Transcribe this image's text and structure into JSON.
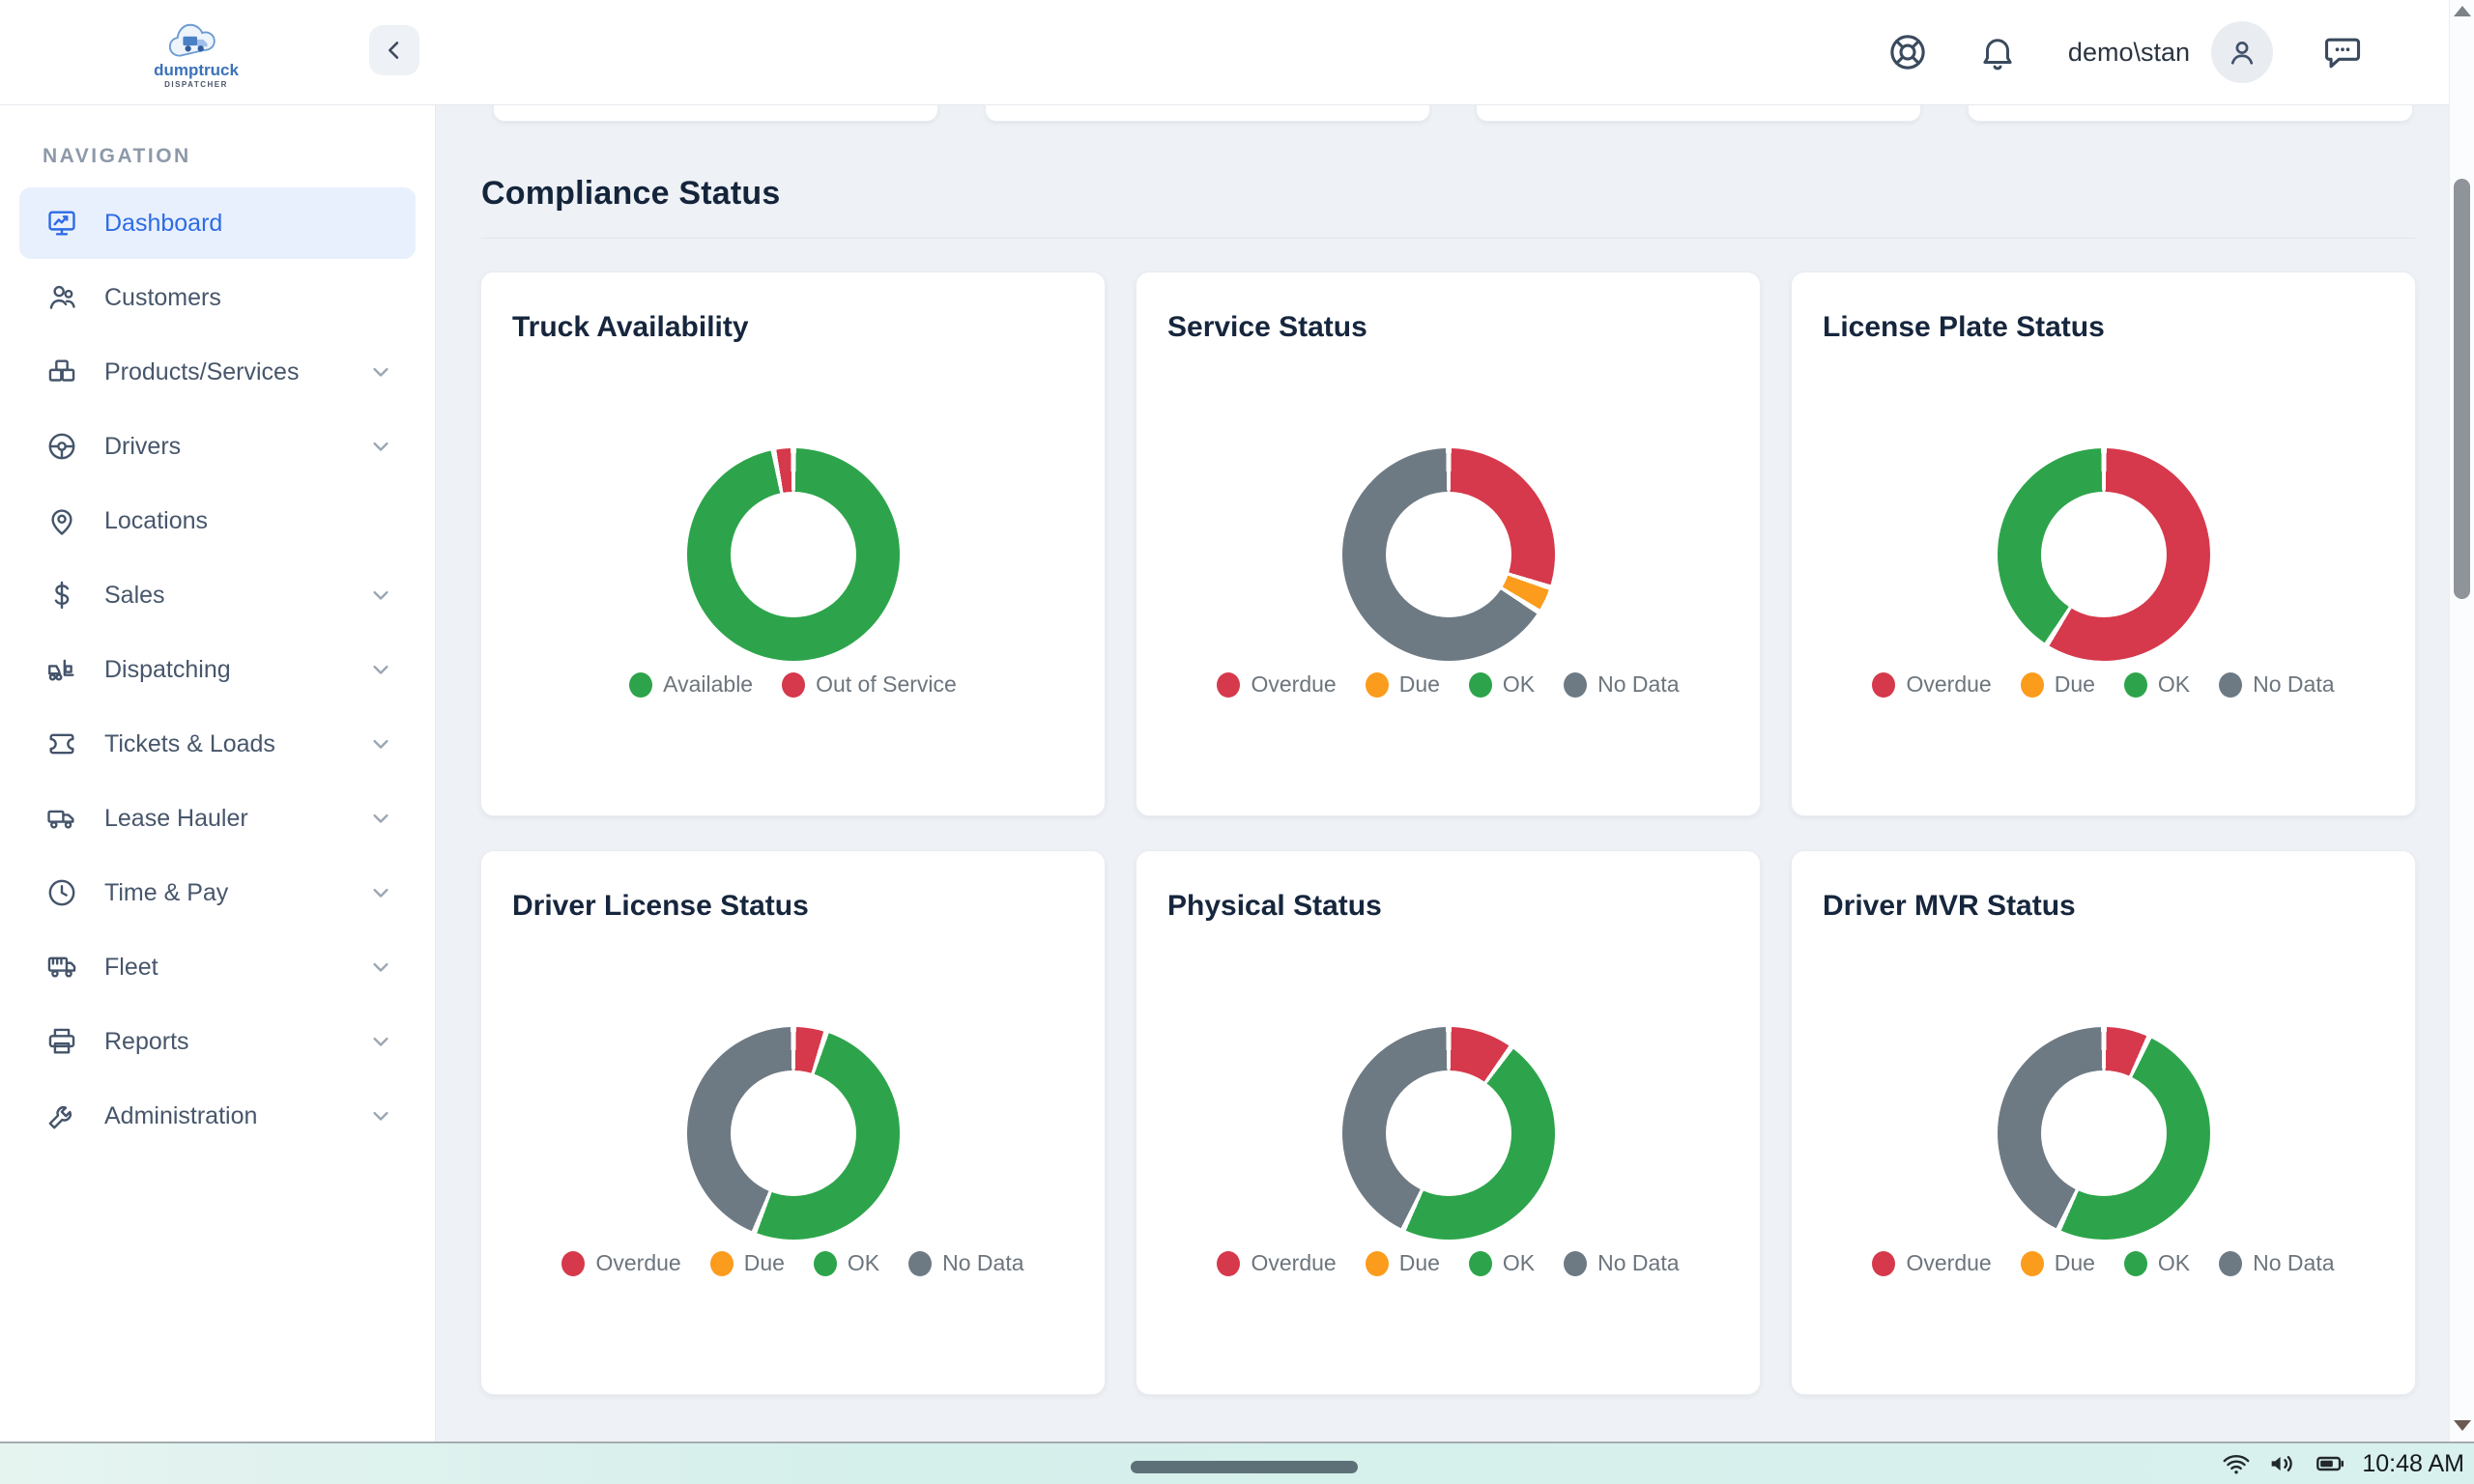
{
  "logo": {
    "name": "dumptruck",
    "tagline": "dispatcher"
  },
  "header": {
    "user": "demo\\stan",
    "icons": [
      "help",
      "notifications",
      "user-avatar",
      "chat"
    ]
  },
  "sidebar": {
    "heading": "NAVIGATION",
    "items": [
      {
        "id": "dashboard",
        "label": "Dashboard",
        "icon": "dashboard",
        "active": true,
        "expandable": false
      },
      {
        "id": "customers",
        "label": "Customers",
        "icon": "customers",
        "active": false,
        "expandable": false
      },
      {
        "id": "products-services",
        "label": "Products/Services",
        "icon": "products",
        "active": false,
        "expandable": true
      },
      {
        "id": "drivers",
        "label": "Drivers",
        "icon": "drivers",
        "active": false,
        "expandable": true
      },
      {
        "id": "locations",
        "label": "Locations",
        "icon": "locations",
        "active": false,
        "expandable": false
      },
      {
        "id": "sales",
        "label": "Sales",
        "icon": "sales",
        "active": false,
        "expandable": true
      },
      {
        "id": "dispatching",
        "label": "Dispatching",
        "icon": "dispatching",
        "active": false,
        "expandable": true
      },
      {
        "id": "tickets-loads",
        "label": "Tickets & Loads",
        "icon": "tickets",
        "active": false,
        "expandable": true
      },
      {
        "id": "lease-hauler",
        "label": "Lease Hauler",
        "icon": "lease-hauler",
        "active": false,
        "expandable": true
      },
      {
        "id": "time-pay",
        "label": "Time & Pay",
        "icon": "time-pay",
        "active": false,
        "expandable": true
      },
      {
        "id": "fleet",
        "label": "Fleet",
        "icon": "fleet",
        "active": false,
        "expandable": true
      },
      {
        "id": "reports",
        "label": "Reports",
        "icon": "reports",
        "active": false,
        "expandable": true
      },
      {
        "id": "administration",
        "label": "Administration",
        "icon": "administration",
        "active": false,
        "expandable": true
      }
    ]
  },
  "colors": {
    "green": "#2da44b",
    "red": "#d6394b",
    "orange": "#fb9c1d",
    "gray": "#6e7a83"
  },
  "compliance": {
    "title": "Compliance Status",
    "cards": [
      {
        "title": "Truck Availability",
        "legend": [
          {
            "label": "Available",
            "color": "green"
          },
          {
            "label": "Out of Service",
            "color": "red"
          }
        ],
        "segments": [
          {
            "label": "Available",
            "color": "green",
            "value": 97
          },
          {
            "label": "Out of Service",
            "color": "red",
            "value": 3
          }
        ]
      },
      {
        "title": "Service Status",
        "legend": [
          {
            "label": "Overdue",
            "color": "red"
          },
          {
            "label": "Due",
            "color": "orange"
          },
          {
            "label": "OK",
            "color": "green"
          },
          {
            "label": "No Data",
            "color": "gray"
          }
        ],
        "segments": [
          {
            "label": "Overdue",
            "color": "red",
            "value": 30
          },
          {
            "label": "Due",
            "color": "orange",
            "value": 4
          },
          {
            "label": "OK",
            "color": "green",
            "value": 0
          },
          {
            "label": "No Data",
            "color": "gray",
            "value": 66
          }
        ]
      },
      {
        "title": "License Plate Status",
        "legend": [
          {
            "label": "Overdue",
            "color": "red"
          },
          {
            "label": "Due",
            "color": "orange"
          },
          {
            "label": "OK",
            "color": "green"
          },
          {
            "label": "No Data",
            "color": "gray"
          }
        ],
        "segments": [
          {
            "label": "Overdue",
            "color": "red",
            "value": 59
          },
          {
            "label": "Due",
            "color": "orange",
            "value": 0
          },
          {
            "label": "OK",
            "color": "green",
            "value": 41
          },
          {
            "label": "No Data",
            "color": "gray",
            "value": 0
          }
        ]
      },
      {
        "title": "Driver License Status",
        "legend": [
          {
            "label": "Overdue",
            "color": "red"
          },
          {
            "label": "Due",
            "color": "orange"
          },
          {
            "label": "OK",
            "color": "green"
          },
          {
            "label": "No Data",
            "color": "gray"
          }
        ],
        "segments": [
          {
            "label": "Overdue",
            "color": "red",
            "value": 5
          },
          {
            "label": "Due",
            "color": "orange",
            "value": 0
          },
          {
            "label": "OK",
            "color": "green",
            "value": 51
          },
          {
            "label": "No Data",
            "color": "gray",
            "value": 44
          }
        ]
      },
      {
        "title": "Physical Status",
        "legend": [
          {
            "label": "Overdue",
            "color": "red"
          },
          {
            "label": "Due",
            "color": "orange"
          },
          {
            "label": "OK",
            "color": "green"
          },
          {
            "label": "No Data",
            "color": "gray"
          }
        ],
        "segments": [
          {
            "label": "Overdue",
            "color": "red",
            "value": 10
          },
          {
            "label": "Due",
            "color": "orange",
            "value": 0
          },
          {
            "label": "OK",
            "color": "green",
            "value": 47
          },
          {
            "label": "No Data",
            "color": "gray",
            "value": 43
          }
        ]
      },
      {
        "title": "Driver MVR Status",
        "legend": [
          {
            "label": "Overdue",
            "color": "red"
          },
          {
            "label": "Due",
            "color": "orange"
          },
          {
            "label": "OK",
            "color": "green"
          },
          {
            "label": "No Data",
            "color": "gray"
          }
        ],
        "segments": [
          {
            "label": "Overdue",
            "color": "red",
            "value": 7
          },
          {
            "label": "Due",
            "color": "orange",
            "value": 0
          },
          {
            "label": "OK",
            "color": "green",
            "value": 50
          },
          {
            "label": "No Data",
            "color": "gray",
            "value": 43
          }
        ]
      }
    ]
  },
  "chart_data": [
    {
      "type": "pie",
      "title": "Truck Availability",
      "labels": [
        "Available",
        "Out of Service"
      ],
      "values": [
        97,
        3
      ],
      "legend_position": "bottom"
    },
    {
      "type": "pie",
      "title": "Service Status",
      "labels": [
        "Overdue",
        "Due",
        "OK",
        "No Data"
      ],
      "values": [
        30,
        4,
        0,
        66
      ],
      "legend_position": "bottom"
    },
    {
      "type": "pie",
      "title": "License Plate Status",
      "labels": [
        "Overdue",
        "Due",
        "OK",
        "No Data"
      ],
      "values": [
        59,
        0,
        41,
        0
      ],
      "legend_position": "bottom"
    },
    {
      "type": "pie",
      "title": "Driver License Status",
      "labels": [
        "Overdue",
        "Due",
        "OK",
        "No Data"
      ],
      "values": [
        5,
        0,
        51,
        44
      ],
      "legend_position": "bottom"
    },
    {
      "type": "pie",
      "title": "Physical Status",
      "labels": [
        "Overdue",
        "Due",
        "OK",
        "No Data"
      ],
      "values": [
        10,
        0,
        47,
        43
      ],
      "legend_position": "bottom"
    },
    {
      "type": "pie",
      "title": "Driver MVR Status",
      "labels": [
        "Overdue",
        "Due",
        "OK",
        "No Data"
      ],
      "values": [
        7,
        0,
        50,
        43
      ],
      "legend_position": "bottom"
    }
  ],
  "taskbar": {
    "time": "10:48 AM"
  }
}
